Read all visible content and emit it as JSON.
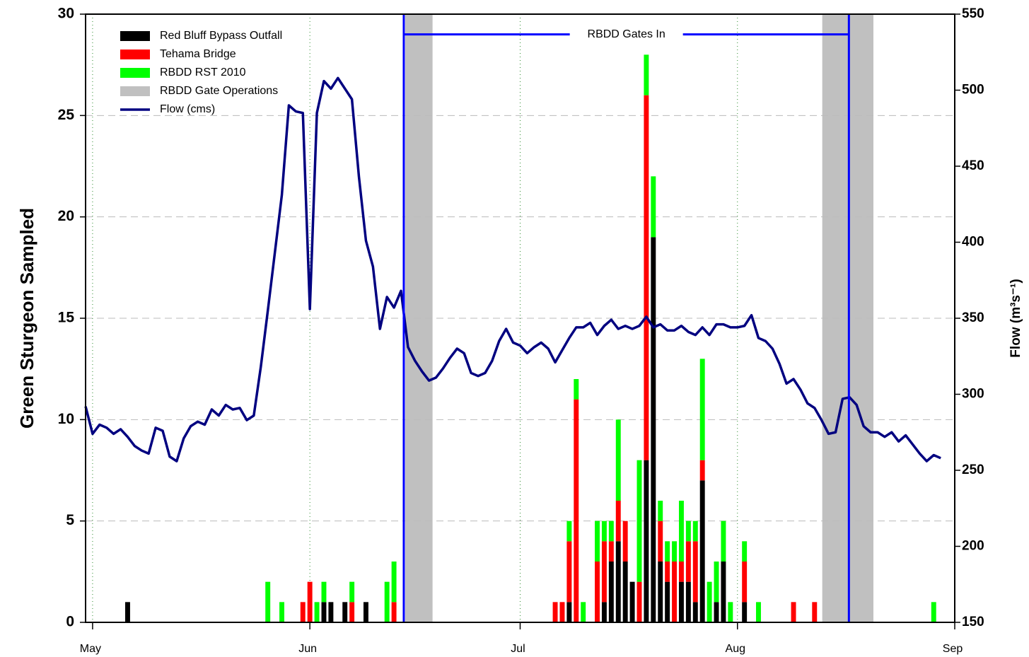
{
  "chart_data": {
    "type": "bar",
    "ylabel": "Green Sturgeon Sampled",
    "y2label": "Flow (m³s⁻¹)",
    "xlim": [
      -1,
      123
    ],
    "xticks": [
      {
        "value": 0,
        "label": "May"
      },
      {
        "value": 31,
        "label": "Jun"
      },
      {
        "value": 61,
        "label": "Jul"
      },
      {
        "value": 92,
        "label": "Aug"
      },
      {
        "value": 123,
        "label": "Sep"
      }
    ],
    "ylim": [
      0,
      30
    ],
    "yticks": [
      0,
      5,
      10,
      15,
      20,
      25,
      30
    ],
    "y2lim": [
      150,
      550
    ],
    "y2ticks": [
      150,
      200,
      250,
      300,
      350,
      400,
      450,
      500,
      550
    ],
    "grid": true,
    "x": [
      5,
      25,
      27,
      30,
      31,
      32,
      33,
      34,
      36,
      37,
      39,
      42,
      43,
      66,
      67,
      68,
      69,
      70,
      72,
      73,
      74,
      75,
      76,
      77,
      78,
      79,
      80,
      81,
      82,
      83,
      84,
      85,
      86,
      87,
      88,
      89,
      90,
      91,
      93,
      95,
      100,
      103,
      120
    ],
    "series": [
      {
        "name": "Red Bluff Bypass Outfall",
        "color": "#000000",
        "values": [
          1,
          0,
          0,
          0,
          0,
          0,
          1,
          1,
          1,
          0,
          1,
          0,
          0,
          0,
          0,
          1,
          0,
          0,
          0,
          1,
          3,
          4,
          3,
          2,
          0,
          8,
          19,
          3,
          2,
          0,
          2,
          2,
          1,
          7,
          0,
          1,
          3,
          0,
          1,
          0,
          0,
          0,
          0
        ]
      },
      {
        "name": "Tehama Bridge",
        "color": "#ff0000",
        "values": [
          0,
          0,
          0,
          1,
          2,
          0,
          0,
          0,
          0,
          1,
          0,
          0,
          1,
          1,
          1,
          3,
          11,
          0,
          3,
          3,
          1,
          2,
          2,
          0,
          2,
          18,
          0,
          2,
          1,
          3,
          1,
          2,
          3,
          1,
          0,
          0,
          0,
          0,
          2,
          0,
          1,
          1,
          0
        ]
      },
      {
        "name": "RBDD RST 2010",
        "color": "#00ff00",
        "values": [
          0,
          2,
          1,
          0,
          0,
          1,
          1,
          0,
          0,
          1,
          0,
          2,
          2,
          0,
          0,
          1,
          1,
          1,
          2,
          1,
          1,
          4,
          0,
          0,
          6,
          2,
          3,
          1,
          1,
          1,
          3,
          1,
          1,
          5,
          2,
          2,
          2,
          1,
          1,
          1,
          0,
          0,
          1
        ]
      },
      {
        "name": "Flow (cms)",
        "color": "#000080",
        "type": "line",
        "axis": "y2",
        "x": [
          -1,
          0,
          1,
          2,
          3,
          4,
          5,
          6,
          7,
          8,
          9,
          10,
          11,
          12,
          13,
          14,
          15,
          16,
          17,
          18,
          19,
          20,
          21,
          22,
          23,
          24,
          25,
          26,
          27,
          28,
          29,
          30,
          31,
          32,
          33,
          34,
          35,
          36,
          37,
          38,
          39,
          40,
          41,
          42,
          43,
          44,
          45,
          46,
          47,
          48,
          49,
          50,
          51,
          52,
          53,
          54,
          55,
          56,
          57,
          58,
          59,
          60,
          61,
          62,
          63,
          64,
          65,
          66,
          67,
          68,
          69,
          70,
          71,
          72,
          73,
          74,
          75,
          76,
          77,
          78,
          79,
          80,
          81,
          82,
          83,
          84,
          85,
          86,
          87,
          88,
          89,
          90,
          91,
          92,
          93,
          94,
          95,
          96,
          97,
          98,
          99,
          100,
          101,
          102,
          103,
          104,
          105,
          106,
          107,
          108,
          109,
          110,
          111,
          112,
          113,
          114,
          115,
          116,
          117,
          118,
          119,
          120,
          121
        ],
        "values": [
          292,
          274,
          280,
          278,
          274,
          277,
          272,
          266,
          263,
          261,
          278,
          276,
          259,
          256,
          271,
          279,
          282,
          280,
          290,
          286,
          293,
          290,
          291,
          283,
          286,
          318,
          355,
          393,
          431,
          490,
          486,
          485,
          356,
          485,
          506,
          501,
          508,
          501,
          494,
          443,
          401,
          384,
          343,
          364,
          357,
          368,
          331,
          322,
          315,
          309,
          311,
          317,
          324,
          330,
          327,
          314,
          312,
          314,
          322,
          335,
          343,
          334,
          332,
          327,
          331,
          334,
          330,
          321,
          329,
          337,
          344,
          344,
          347,
          339,
          345,
          349,
          343,
          345,
          343,
          345,
          351,
          344,
          346,
          342,
          342,
          345,
          341,
          339,
          344,
          339,
          346,
          346,
          344,
          344,
          345,
          352,
          337,
          335,
          330,
          320,
          307,
          310,
          303,
          294,
          291,
          283,
          274,
          275,
          297,
          298,
          293,
          279,
          275,
          275,
          272,
          275,
          269,
          273,
          267,
          261,
          256,
          260,
          258
        ]
      }
    ],
    "shaded": {
      "name": "RBDD Gate Operations",
      "color": "#c0c0c0",
      "regions": [
        [
          44.6,
          48.5
        ],
        [
          104.1,
          111.4
        ]
      ]
    },
    "gate_lines": {
      "label": "RBDD Gates In",
      "color": "#0000ff",
      "x": [
        44.4,
        107.9
      ],
      "y": 29
    }
  }
}
